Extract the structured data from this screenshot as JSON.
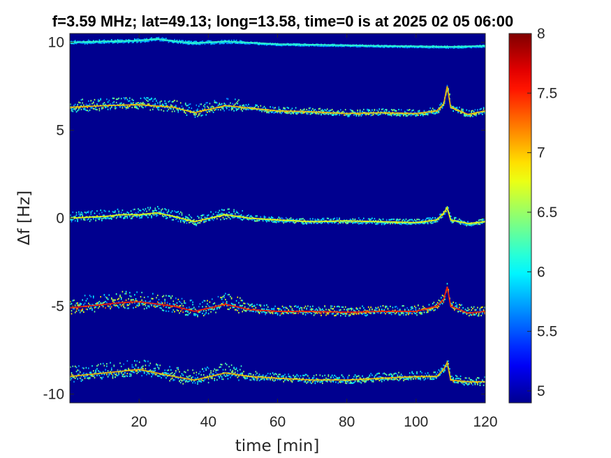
{
  "chart_data": {
    "type": "heatmap",
    "title": "f=3.59 MHz;  lat=49.13; long=13.58, time=0 is at 2025 02 05 06:00",
    "xlabel": "time [min]",
    "ylabel": "Δf [Hz]",
    "xlim": [
      0,
      120
    ],
    "ylim": [
      -10.5,
      10.5
    ],
    "xticks": [
      20,
      40,
      60,
      80,
      100,
      120
    ],
    "yticks": [
      -10,
      -5,
      0,
      5,
      10
    ],
    "xtick_labels": [
      "20",
      "40",
      "60",
      "80",
      "100",
      "120"
    ],
    "ytick_labels": [
      "-10",
      "-5",
      "0",
      "5",
      "10"
    ],
    "grid": false,
    "colorbar": {
      "limits": [
        4.9,
        8.0
      ],
      "ticks": [
        5,
        5.5,
        6,
        6.5,
        7,
        7.5,
        8
      ],
      "tick_labels": [
        "5",
        "5.5",
        "6",
        "6.5",
        "7",
        "7.5",
        "8"
      ],
      "colormap": "jet",
      "placement": "right"
    },
    "colors": {
      "background": "#00008f",
      "jet_stops": [
        "#00008f",
        "#0000ff",
        "#00ffff",
        "#ffff00",
        "#ff0000",
        "#800000"
      ]
    },
    "traces": [
      {
        "offset": 10.0,
        "intensity": 6.2,
        "spread": 0.1,
        "points": [
          [
            0,
            10.0
          ],
          [
            10,
            10.05
          ],
          [
            20,
            10.1
          ],
          [
            25,
            10.2
          ],
          [
            35,
            9.95
          ],
          [
            45,
            10.05
          ],
          [
            60,
            9.9
          ],
          [
            75,
            9.85
          ],
          [
            90,
            9.8
          ],
          [
            110,
            9.75
          ],
          [
            120,
            9.8
          ]
        ]
      },
      {
        "offset": 6.2,
        "intensity": 7.0,
        "spread": 0.35,
        "points": [
          [
            0,
            6.3
          ],
          [
            10,
            6.4
          ],
          [
            20,
            6.45
          ],
          [
            30,
            6.3
          ],
          [
            36,
            6.0
          ],
          [
            45,
            6.4
          ],
          [
            60,
            6.1
          ],
          [
            70,
            6.05
          ],
          [
            80,
            5.95
          ],
          [
            90,
            6.0
          ],
          [
            100,
            5.95
          ],
          [
            106,
            6.1
          ],
          [
            108,
            6.5
          ],
          [
            109,
            7.5
          ],
          [
            110,
            6.3
          ],
          [
            115,
            5.9
          ],
          [
            120,
            6.1
          ]
        ]
      },
      {
        "offset": 0.0,
        "intensity": 6.8,
        "spread": 0.3,
        "points": [
          [
            0,
            0.0
          ],
          [
            10,
            0.1
          ],
          [
            15,
            0.2
          ],
          [
            20,
            0.2
          ],
          [
            25,
            0.3
          ],
          [
            30,
            0.1
          ],
          [
            36,
            -0.2
          ],
          [
            45,
            0.2
          ],
          [
            52,
            0.0
          ],
          [
            60,
            -0.1
          ],
          [
            70,
            -0.2
          ],
          [
            80,
            -0.15
          ],
          [
            90,
            -0.2
          ],
          [
            100,
            -0.25
          ],
          [
            106,
            -0.1
          ],
          [
            108,
            0.3
          ],
          [
            109,
            0.6
          ],
          [
            110,
            -0.1
          ],
          [
            115,
            -0.3
          ],
          [
            120,
            -0.2
          ]
        ]
      },
      {
        "offset": -5.0,
        "intensity": 7.5,
        "spread": 0.5,
        "points": [
          [
            0,
            -5.1
          ],
          [
            10,
            -4.9
          ],
          [
            15,
            -4.8
          ],
          [
            20,
            -4.75
          ],
          [
            30,
            -5.0
          ],
          [
            36,
            -5.3
          ],
          [
            45,
            -4.9
          ],
          [
            52,
            -5.2
          ],
          [
            60,
            -5.3
          ],
          [
            70,
            -5.3
          ],
          [
            80,
            -5.35
          ],
          [
            90,
            -5.3
          ],
          [
            100,
            -5.3
          ],
          [
            106,
            -5.0
          ],
          [
            108,
            -4.6
          ],
          [
            109,
            -3.9
          ],
          [
            110,
            -5.0
          ],
          [
            115,
            -5.4
          ],
          [
            120,
            -5.3
          ]
        ]
      },
      {
        "offset": -9.0,
        "intensity": 7.0,
        "spread": 0.45,
        "points": [
          [
            0,
            -9.0
          ],
          [
            10,
            -8.8
          ],
          [
            20,
            -8.6
          ],
          [
            30,
            -9.0
          ],
          [
            36,
            -9.2
          ],
          [
            45,
            -8.8
          ],
          [
            52,
            -9.0
          ],
          [
            60,
            -9.1
          ],
          [
            70,
            -9.2
          ],
          [
            80,
            -9.2
          ],
          [
            90,
            -9.1
          ],
          [
            100,
            -9.0
          ],
          [
            106,
            -9.0
          ],
          [
            108,
            -8.6
          ],
          [
            109,
            -8.2
          ],
          [
            110,
            -9.2
          ],
          [
            115,
            -9.3
          ],
          [
            120,
            -9.3
          ]
        ]
      }
    ]
  }
}
